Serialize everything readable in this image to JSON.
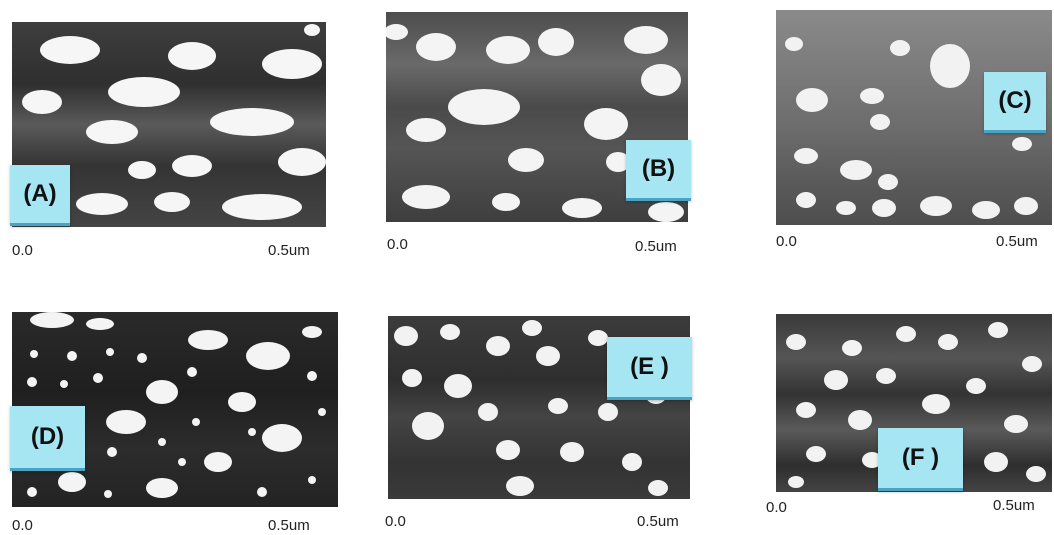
{
  "panels": [
    {
      "label": "(A)",
      "scale_min": "0.0",
      "scale_max": "0.5um"
    },
    {
      "label": "(B)",
      "scale_min": "0.0",
      "scale_max": "0.5um"
    },
    {
      "label": "(C)",
      "scale_min": "0.0",
      "scale_max": "0.5um"
    },
    {
      "label": "(D)",
      "scale_min": "0.0",
      "scale_max": "0.5um"
    },
    {
      "label": "(E )",
      "scale_min": "0.0",
      "scale_max": "0.5um"
    },
    {
      "label": "(F )",
      "scale_min": "0.0",
      "scale_max": "0.5um"
    }
  ],
  "colors": {
    "label_background": "#a6e6f3",
    "label_border": "#4aa3c4",
    "particle": "#f4f4f4"
  }
}
